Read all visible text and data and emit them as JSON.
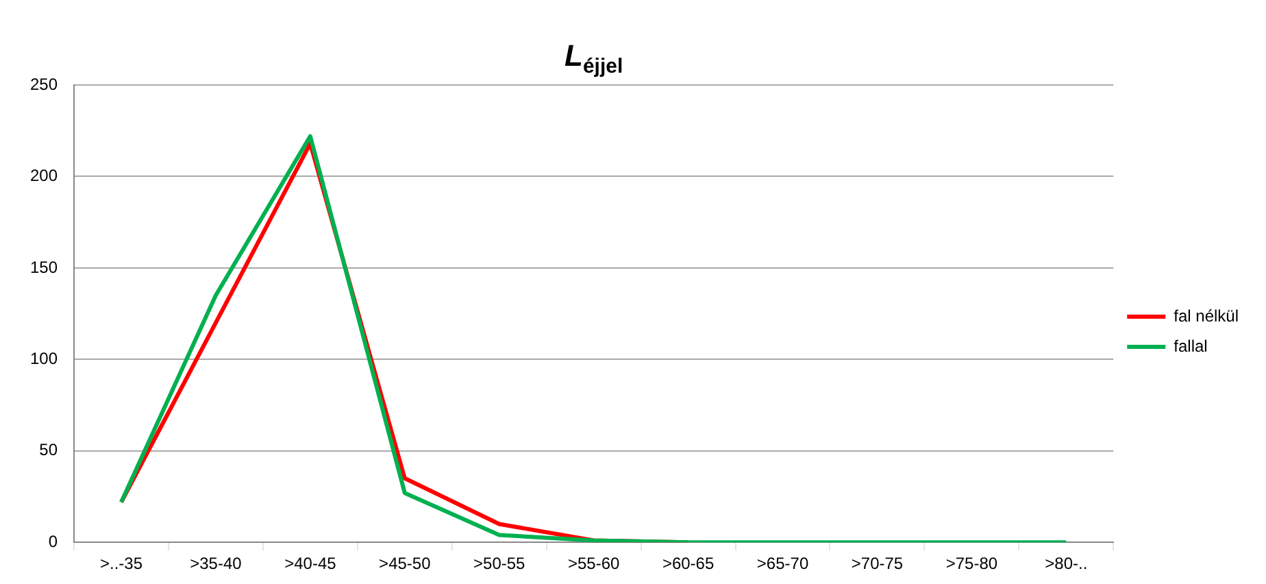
{
  "chart_data": {
    "type": "line",
    "title": "L$_{éjjel}$",
    "categories": [
      ">..-35",
      ">35-40",
      ">40-45",
      ">45-50",
      ">50-55",
      ">55-60",
      ">60-65",
      ">65-70",
      ">70-75",
      ">75-80",
      ">80-.."
    ],
    "series": [
      {
        "name": "fal nélkül",
        "color": "#ff0000",
        "values": [
          22,
          120,
          218,
          35,
          10,
          1,
          0,
          null,
          null,
          null,
          null
        ]
      },
      {
        "name": "fallal",
        "color": "#00b050",
        "values": [
          22,
          135,
          222,
          27,
          4,
          1,
          0,
          0,
          0,
          0,
          0
        ]
      }
    ],
    "ylim": [
      0,
      250
    ],
    "yticks": [
      0,
      50,
      100,
      150,
      200,
      250
    ],
    "grid": "y",
    "legend": "right",
    "marker": "none"
  }
}
